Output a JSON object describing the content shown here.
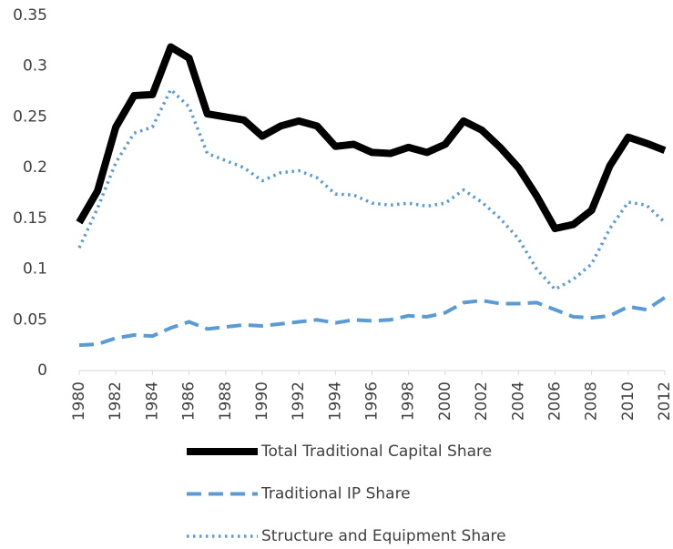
{
  "chart_data": {
    "type": "line",
    "x": [
      1980,
      1981,
      1982,
      1983,
      1984,
      1985,
      1986,
      1987,
      1988,
      1989,
      1990,
      1991,
      1992,
      1993,
      1994,
      1995,
      1996,
      1997,
      1998,
      1999,
      2000,
      2001,
      2002,
      2003,
      2004,
      2005,
      2006,
      2007,
      2008,
      2009,
      2010,
      2011,
      2012
    ],
    "xlim": [
      1980,
      2012
    ],
    "xticks": [
      1980,
      1982,
      1984,
      1986,
      1988,
      1990,
      1992,
      1994,
      1996,
      1998,
      2000,
      2002,
      2004,
      2006,
      2008,
      2010,
      2012
    ],
    "ylim": [
      0,
      0.35
    ],
    "yticks": [
      0,
      0.05,
      0.1,
      0.15,
      0.2,
      0.25,
      0.3,
      0.35
    ],
    "grid": false,
    "legend": "bottom",
    "series": [
      {
        "name": "Total Traditional Capital Share",
        "color": "#000000",
        "style": "solid",
        "values": [
          0.146,
          0.177,
          0.24,
          0.271,
          0.272,
          0.319,
          0.308,
          0.253,
          0.25,
          0.247,
          0.231,
          0.241,
          0.246,
          0.241,
          0.221,
          0.223,
          0.215,
          0.214,
          0.22,
          0.215,
          0.223,
          0.246,
          0.237,
          0.22,
          0.2,
          0.172,
          0.14,
          0.144,
          0.158,
          0.202,
          0.23,
          0.224,
          0.217
        ]
      },
      {
        "name": "Traditional IP Share",
        "color": "#5b9bd5",
        "style": "dashed",
        "values": [
          0.025,
          0.026,
          0.032,
          0.035,
          0.034,
          0.042,
          0.048,
          0.041,
          0.043,
          0.045,
          0.044,
          0.046,
          0.048,
          0.05,
          0.047,
          0.05,
          0.049,
          0.05,
          0.054,
          0.053,
          0.057,
          0.067,
          0.069,
          0.066,
          0.066,
          0.067,
          0.06,
          0.053,
          0.052,
          0.054,
          0.063,
          0.06,
          0.072
        ]
      },
      {
        "name": "Structure and Equipment Share",
        "color": "#5b9bd5",
        "style": "dotted",
        "values": [
          0.121,
          0.16,
          0.205,
          0.234,
          0.24,
          0.277,
          0.26,
          0.214,
          0.207,
          0.2,
          0.187,
          0.195,
          0.197,
          0.19,
          0.174,
          0.173,
          0.165,
          0.163,
          0.165,
          0.162,
          0.165,
          0.178,
          0.166,
          0.15,
          0.13,
          0.1,
          0.08,
          0.09,
          0.105,
          0.14,
          0.166,
          0.163,
          0.146
        ]
      }
    ]
  }
}
